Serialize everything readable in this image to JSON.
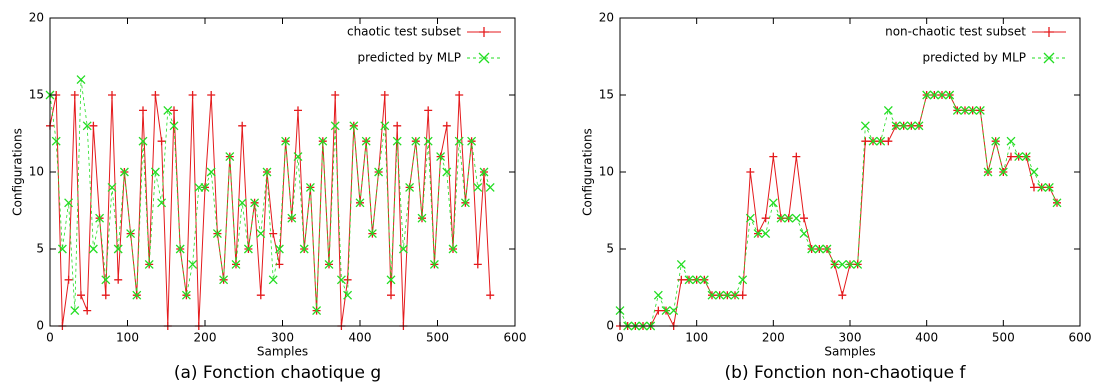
{
  "chart_data": [
    {
      "type": "line",
      "caption": "(a)  Fonction chaotique g",
      "xlabel": "Samples",
      "ylabel": "Configurations",
      "xlim": [
        0,
        600
      ],
      "ylim": [
        0,
        20
      ],
      "xticks": [
        0,
        100,
        200,
        300,
        400,
        500,
        600
      ],
      "yticks": [
        0,
        5,
        10,
        15,
        20
      ],
      "legend": "top-right",
      "x": [
        0,
        8,
        16,
        24,
        32,
        40,
        48,
        56,
        64,
        72,
        80,
        88,
        96,
        104,
        112,
        120,
        128,
        136,
        144,
        152,
        160,
        168,
        176,
        184,
        192,
        200,
        208,
        216,
        224,
        232,
        240,
        248,
        256,
        264,
        272,
        280,
        288,
        296,
        304,
        312,
        320,
        328,
        336,
        344,
        352,
        360,
        368,
        376,
        384,
        392,
        400,
        408,
        416,
        424,
        432,
        440,
        448,
        456,
        464,
        472,
        480,
        488,
        496,
        504,
        512,
        520,
        528,
        536,
        544,
        552,
        560,
        568
      ],
      "series": [
        {
          "name": "chaotic test subset",
          "color": "#e41a1c",
          "marker": "+",
          "line": "solid",
          "values": [
            13,
            15,
            0,
            3,
            15,
            2,
            1,
            13,
            7,
            2,
            15,
            3,
            10,
            6,
            2,
            14,
            4,
            15,
            12,
            0,
            14,
            5,
            2,
            15,
            0,
            9,
            15,
            6,
            3,
            11,
            4,
            13,
            5,
            8,
            2,
            10,
            6,
            4,
            12,
            7,
            14,
            5,
            9,
            1,
            12,
            4,
            15,
            0,
            3,
            13,
            8,
            12,
            6,
            10,
            15,
            2,
            13,
            0,
            9,
            12,
            7,
            14,
            4,
            11,
            13,
            5,
            15,
            8,
            12,
            4,
            10,
            2
          ]
        },
        {
          "name": "predicted by MLP",
          "color": "#22dd22",
          "marker": "x",
          "line": "dashed",
          "values": [
            15,
            12,
            5,
            8,
            1,
            16,
            13,
            5,
            7,
            3,
            9,
            5,
            10,
            6,
            2,
            12,
            4,
            10,
            8,
            14,
            13,
            5,
            2,
            4,
            9,
            9,
            10,
            6,
            3,
            11,
            4,
            8,
            5,
            8,
            6,
            10,
            3,
            5,
            12,
            7,
            11,
            5,
            9,
            1,
            12,
            4,
            13,
            3,
            2,
            13,
            8,
            12,
            6,
            10,
            13,
            3,
            12,
            5,
            9,
            12,
            7,
            12,
            4,
            11,
            10,
            5,
            12,
            8,
            12,
            9,
            10,
            9
          ]
        }
      ]
    },
    {
      "type": "line",
      "caption": "(b)  Fonction non-chaotique f",
      "xlabel": "Samples",
      "ylabel": "Configurations",
      "xlim": [
        0,
        600
      ],
      "ylim": [
        0,
        20
      ],
      "xticks": [
        0,
        100,
        200,
        300,
        400,
        500,
        600
      ],
      "yticks": [
        0,
        5,
        10,
        15,
        20
      ],
      "legend": "top-right",
      "x": [
        0,
        10,
        20,
        30,
        40,
        50,
        60,
        70,
        80,
        90,
        100,
        110,
        120,
        130,
        140,
        150,
        160,
        170,
        180,
        190,
        200,
        210,
        220,
        230,
        240,
        250,
        260,
        270,
        280,
        290,
        300,
        310,
        320,
        330,
        340,
        350,
        360,
        370,
        380,
        390,
        400,
        410,
        420,
        430,
        440,
        450,
        460,
        470,
        480,
        490,
        500,
        510,
        520,
        530,
        540,
        550,
        560,
        570
      ],
      "series": [
        {
          "name": "non-chaotic test subset",
          "color": "#e41a1c",
          "marker": "+",
          "line": "solid",
          "values": [
            0,
            0,
            0,
            0,
            0,
            1,
            1,
            0,
            3,
            3,
            3,
            3,
            2,
            2,
            2,
            2,
            2,
            10,
            6,
            7,
            11,
            7,
            7,
            11,
            7,
            5,
            5,
            5,
            4,
            2,
            4,
            4,
            12,
            12,
            12,
            12,
            13,
            13,
            13,
            13,
            15,
            15,
            15,
            15,
            14,
            14,
            14,
            14,
            10,
            12,
            10,
            11,
            11,
            11,
            9,
            9,
            9,
            8
          ]
        },
        {
          "name": "predicted by MLP",
          "color": "#22dd22",
          "marker": "x",
          "line": "dashed",
          "values": [
            1,
            0,
            0,
            0,
            0,
            2,
            1,
            1,
            4,
            3,
            3,
            3,
            2,
            2,
            2,
            2,
            3,
            7,
            6,
            6,
            8,
            7,
            7,
            7,
            6,
            5,
            5,
            5,
            4,
            4,
            4,
            4,
            13,
            12,
            12,
            14,
            13,
            13,
            13,
            13,
            15,
            15,
            15,
            15,
            14,
            14,
            14,
            14,
            10,
            12,
            10,
            12,
            11,
            11,
            10,
            9,
            9,
            8
          ]
        }
      ]
    }
  ]
}
